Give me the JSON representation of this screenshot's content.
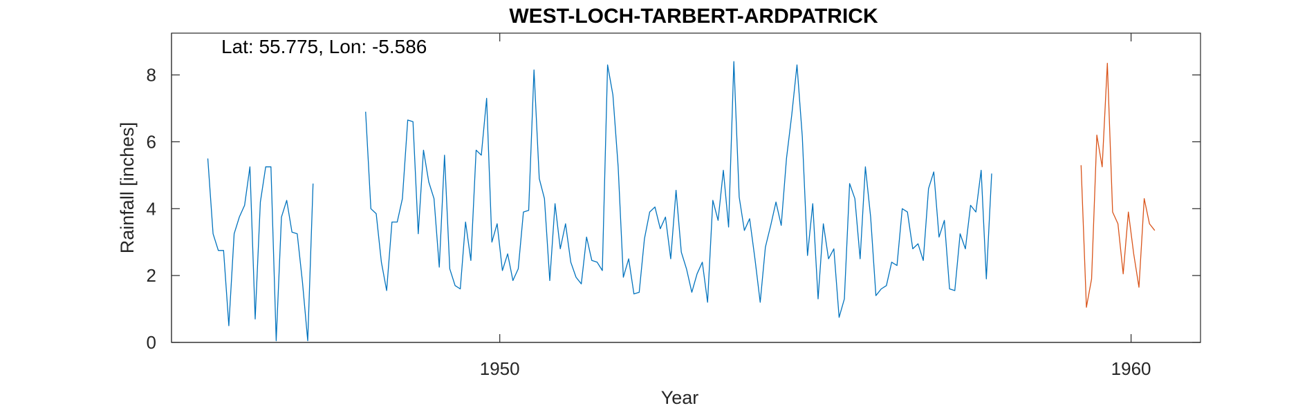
{
  "chart_data": {
    "type": "line",
    "title": "WEST-LOCH-TARBERT-ARDPATRICK",
    "annotation": "Lat: 55.775, Lon: -5.586",
    "xlabel": "Year",
    "ylabel": "Rainfall [inches]",
    "xlim": [
      1944.8,
      1961.1
    ],
    "ylim": [
      0,
      9.25
    ],
    "xticks": [
      1950,
      1960
    ],
    "yticks": [
      0,
      2,
      4,
      6,
      8
    ],
    "grid": false,
    "legend": "none",
    "series": [
      {
        "color": "#0072BD",
        "x": [
          1945.375,
          1945.458,
          1945.542,
          1945.625,
          1945.708,
          1945.792,
          1945.875,
          1945.958,
          1946.042,
          1946.125,
          1946.208,
          1946.292,
          1946.375,
          1946.458,
          1946.542,
          1946.625,
          1946.708,
          1946.792,
          1946.875,
          1946.958,
          1947.042,
          1947.125,
          1947.208,
          1947.292,
          1947.375,
          null,
          1947.875,
          1947.958,
          1948.042,
          1948.125,
          1948.208,
          1948.292,
          1948.375,
          1948.458,
          1948.542,
          1948.625,
          1948.708,
          1948.792,
          1948.875,
          1948.958,
          1949.042,
          1949.125,
          1949.208,
          1949.292,
          1949.375,
          1949.458,
          1949.542,
          1949.625,
          1949.708,
          1949.792,
          1949.875,
          1949.958,
          1950.042,
          1950.125,
          1950.208,
          1950.292,
          1950.375,
          1950.458,
          1950.542,
          1950.625,
          1950.708,
          1950.792,
          1950.875,
          1950.958,
          1951.042,
          1951.125,
          1951.208,
          1951.292,
          1951.375,
          1951.458,
          1951.542,
          1951.625,
          1951.708,
          1951.792,
          1951.875,
          1951.958,
          1952.042,
          1952.125,
          1952.208,
          1952.292,
          1952.375,
          1952.458,
          1952.542,
          1952.625,
          1952.708,
          1952.792,
          1952.875,
          1952.958,
          1953.042,
          1953.125,
          1953.208,
          1953.292,
          1953.375,
          1953.458,
          1953.542,
          1953.625,
          1953.708,
          1953.792,
          1953.875,
          1953.958,
          1954.042,
          1954.125,
          1954.208,
          1954.292,
          1954.375,
          1954.458,
          1954.542,
          1954.625,
          1954.708,
          1954.792,
          1954.875,
          1954.958,
          1955.042,
          1955.125,
          1955.208,
          1955.292,
          1955.375,
          1955.458,
          1955.542,
          1955.625,
          1955.708,
          1955.792,
          1955.875,
          1955.958,
          1956.042,
          1956.125,
          1956.208,
          1956.292,
          1956.375,
          1956.458,
          1956.542,
          1956.625,
          1956.708,
          1956.792,
          1956.875,
          1956.958,
          1957.042,
          1957.125,
          1957.208,
          1957.292,
          1957.375,
          1957.458,
          1957.542,
          1957.625,
          1957.708,
          1957.792,
          1957.875,
          1957.958,
          1958.042,
          1958.125,
          1958.208,
          1958.292
        ],
        "y": [
          5.5,
          3.25,
          2.75,
          2.75,
          0.5,
          3.25,
          3.75,
          4.1,
          5.25,
          0.7,
          4.2,
          5.25,
          5.25,
          0.05,
          3.75,
          4.25,
          3.3,
          3.25,
          1.8,
          0.05,
          4.75,
          null,
          null,
          null,
          null,
          null,
          6.9,
          4.0,
          3.85,
          2.4,
          1.55,
          3.6,
          3.6,
          4.3,
          6.65,
          6.6,
          3.25,
          5.75,
          4.8,
          4.3,
          2.25,
          5.6,
          2.2,
          1.7,
          1.6,
          3.6,
          2.45,
          5.75,
          5.6,
          7.3,
          3.0,
          3.55,
          2.15,
          2.65,
          1.85,
          2.2,
          3.9,
          3.95,
          8.15,
          4.9,
          4.3,
          1.85,
          4.15,
          2.8,
          3.55,
          2.4,
          1.95,
          1.75,
          3.15,
          2.45,
          2.4,
          2.15,
          8.3,
          7.4,
          5.25,
          1.95,
          2.5,
          1.45,
          1.5,
          3.1,
          3.9,
          4.05,
          3.4,
          3.75,
          2.5,
          4.55,
          2.7,
          2.2,
          1.5,
          2.05,
          2.4,
          1.2,
          4.25,
          3.65,
          5.15,
          3.45,
          8.4,
          4.35,
          3.35,
          3.7,
          2.5,
          1.2,
          2.85,
          3.5,
          4.2,
          3.5,
          5.5,
          6.8,
          8.3,
          6.15,
          2.6,
          4.15,
          1.3,
          3.55,
          2.5,
          2.8,
          0.75,
          1.3,
          4.75,
          4.3,
          2.5,
          5.25,
          3.75,
          1.4,
          1.6,
          1.7,
          2.4,
          2.3,
          4.0,
          3.9,
          2.8,
          2.95,
          2.45,
          4.6,
          5.1,
          3.15,
          3.65,
          1.6,
          1.55,
          3.25,
          2.8,
          4.1,
          3.9,
          5.15,
          1.9,
          5.05,
          null,
          null,
          null,
          null,
          null,
          null
        ]
      },
      {
        "color": "#D95319",
        "x": [
          1958.375,
          1958.458,
          1958.542,
          1958.625,
          1958.708,
          1958.792,
          1958.875,
          1958.958,
          1959.042,
          1959.125,
          1959.208,
          1959.292,
          1959.375,
          1959.458,
          1959.542,
          1959.625,
          1959.708,
          1959.792,
          1959.875,
          1959.958,
          1960.042,
          1960.125,
          1960.208,
          1960.292,
          1960.375
        ],
        "y": [
          null,
          null,
          null,
          null,
          null,
          null,
          null,
          null,
          null,
          null,
          5.3,
          1.05,
          1.9,
          6.2,
          5.25,
          8.35,
          3.9,
          3.55,
          2.05,
          3.9,
          2.65,
          1.65,
          4.3,
          3.55,
          3.35
        ]
      }
    ]
  }
}
